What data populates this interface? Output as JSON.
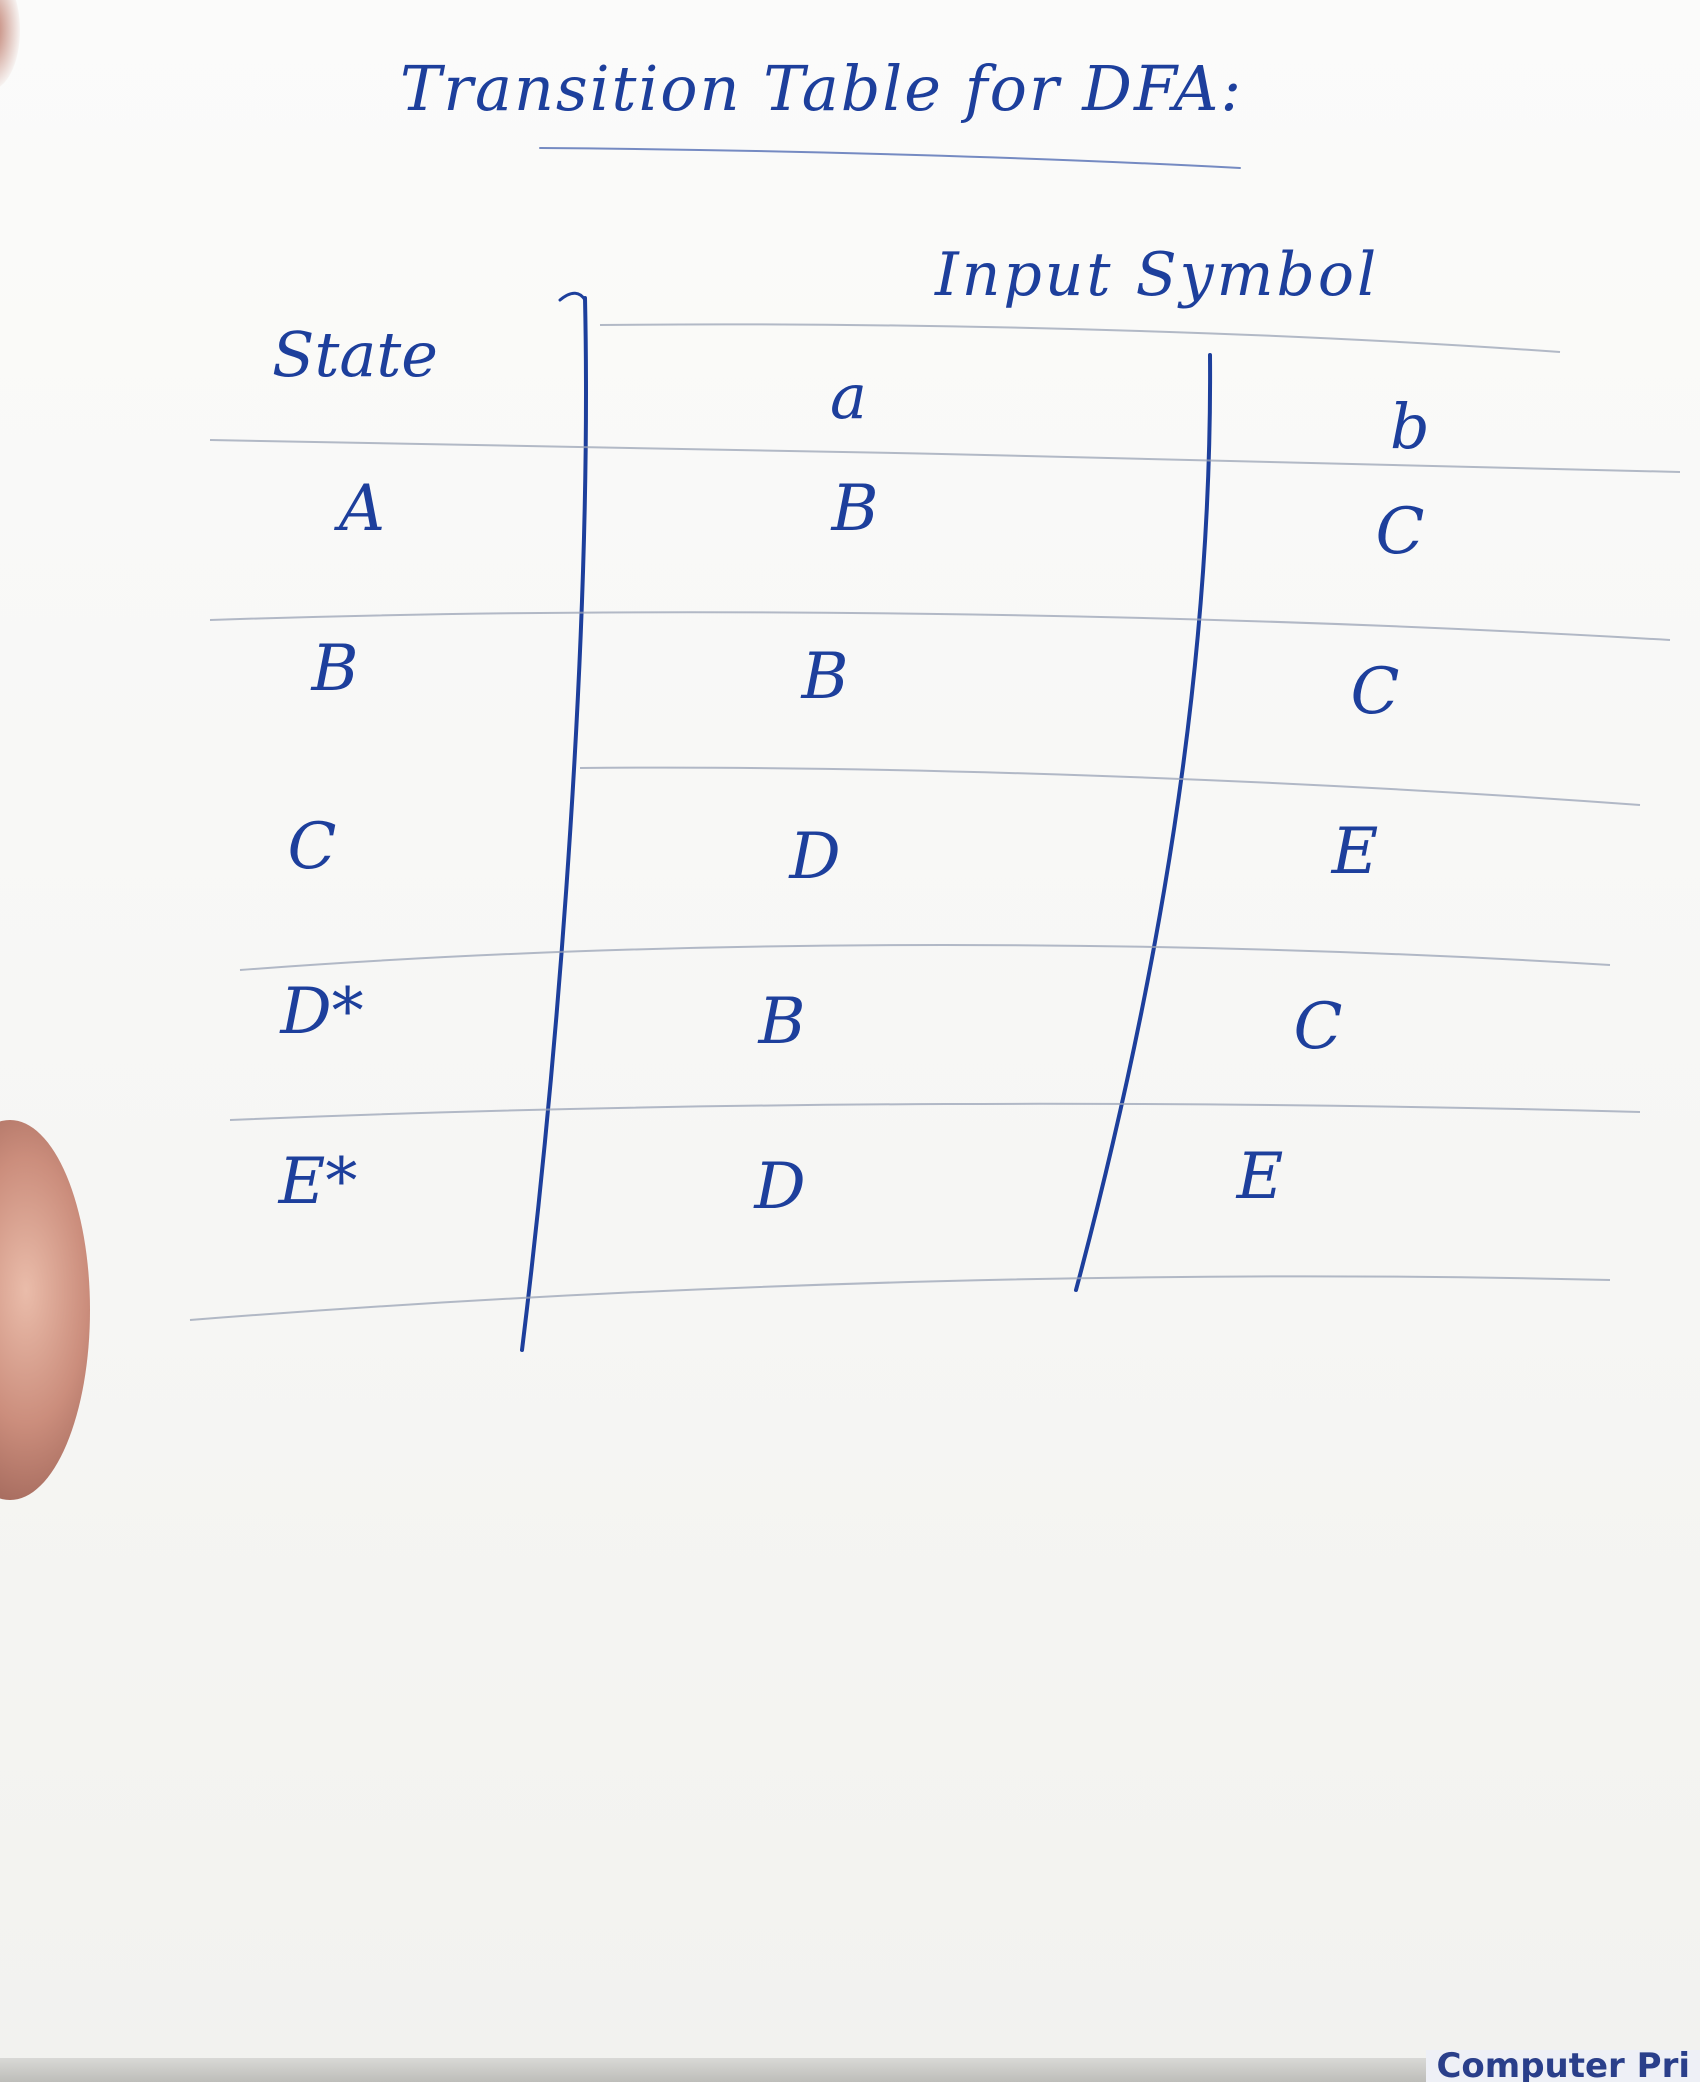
{
  "title": "Transition Table for DFA:",
  "table": {
    "group_header": "Input Symbol",
    "state_header": "State",
    "symbols": [
      "a",
      "b"
    ],
    "rows": [
      {
        "state": "A",
        "a": "B",
        "b": "C"
      },
      {
        "state": "B",
        "a": "B",
        "b": "C"
      },
      {
        "state": "C",
        "a": "D",
        "b": "E"
      },
      {
        "state": "D*",
        "a": "B",
        "b": "C"
      },
      {
        "state": "E*",
        "a": "D",
        "b": "E"
      }
    ]
  },
  "bottom_print": "Computer Pri"
}
